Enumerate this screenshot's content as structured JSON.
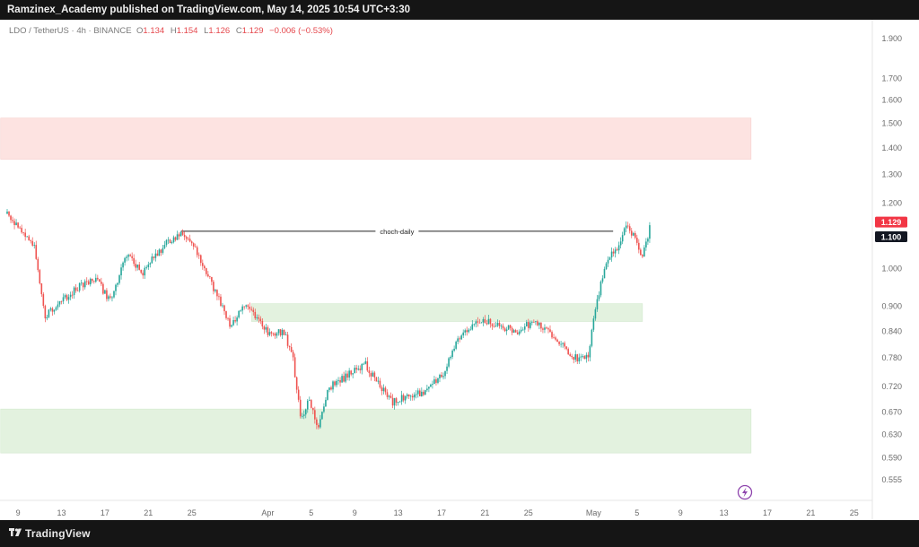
{
  "header": {
    "text": "Ramzinex_Academy published on TradingView.com, May 14, 2025 10:54 UTC+3:30"
  },
  "footer": {
    "brand": "TradingView"
  },
  "colors": {
    "up": "#26a69a",
    "down": "#ef5350",
    "supply_zone": "#fde3e1",
    "demand_zone": "#e3f2df",
    "current_price_tag": "#f23645",
    "level_tag": "#131722"
  },
  "chart_data": {
    "type": "candlestick",
    "symbol_legend": {
      "pair": "LDO / TetherUS · 4h · BINANCE",
      "o_label": "O",
      "open": "1.134",
      "h_label": "H",
      "high": "1.154",
      "l_label": "L",
      "low": "1.126",
      "c_label": "C",
      "close": "1.129",
      "change": "−0.006 (−0.53%)"
    },
    "y_axis": {
      "ticks": [
        "1.900",
        "1.700",
        "1.600",
        "1.500",
        "1.400",
        "1.300",
        "1.200",
        "1.100",
        "1.000",
        "0.900",
        "0.840",
        "0.780",
        "0.720",
        "0.670",
        "0.630",
        "0.590",
        "0.555"
      ],
      "scale": "log"
    },
    "x_axis": {
      "ticks": [
        "9",
        "13",
        "17",
        "21",
        "25",
        "Apr",
        "5",
        "9",
        "13",
        "17",
        "21",
        "25",
        "May",
        "5",
        "9",
        "13",
        "17",
        "21",
        "25"
      ]
    },
    "price_tags": [
      {
        "label": "1.129",
        "value": 1.129,
        "kind": "current"
      },
      {
        "label": "1.100",
        "value": 1.1,
        "kind": "level"
      }
    ],
    "zones": [
      {
        "kind": "supply",
        "low": 1.357,
        "high": 1.522,
        "from_day": -0.6,
        "to_day": 68.5
      },
      {
        "kind": "demand",
        "low": 0.863,
        "high": 0.907,
        "from_day": 22.5,
        "to_day": 58.5
      },
      {
        "kind": "demand",
        "low": 0.598,
        "high": 0.676,
        "from_day": -0.6,
        "to_day": 68.5
      }
    ],
    "annotations": [
      {
        "label": "choch-daily",
        "value": 1.11,
        "from_day": 16.0,
        "to_day": 55.8
      }
    ],
    "grid": false,
    "price_anchors": [
      [
        0,
        1.165
      ],
      [
        2.5,
        1.06
      ],
      [
        3.5,
        0.875
      ],
      [
        4.6,
        0.9
      ],
      [
        6.5,
        0.95
      ],
      [
        8.0,
        0.975
      ],
      [
        9.5,
        0.915
      ],
      [
        11.0,
        1.04
      ],
      [
        12.5,
        0.99
      ],
      [
        14.5,
        1.07
      ],
      [
        16.0,
        1.105
      ],
      [
        17.5,
        1.05
      ],
      [
        18.8,
        0.96
      ],
      [
        20.5,
        0.855
      ],
      [
        22.0,
        0.905
      ],
      [
        23.0,
        0.875
      ],
      [
        24.0,
        0.835
      ],
      [
        25.5,
        0.84
      ],
      [
        26.3,
        0.78
      ],
      [
        27.0,
        0.66
      ],
      [
        27.8,
        0.69
      ],
      [
        28.7,
        0.64
      ],
      [
        29.5,
        0.715
      ],
      [
        31.5,
        0.745
      ],
      [
        33.0,
        0.765
      ],
      [
        34.5,
        0.715
      ],
      [
        35.5,
        0.69
      ],
      [
        37.0,
        0.7
      ],
      [
        38.5,
        0.71
      ],
      [
        40.0,
        0.74
      ],
      [
        41.5,
        0.82
      ],
      [
        42.5,
        0.85
      ],
      [
        44.0,
        0.865
      ],
      [
        45.5,
        0.85
      ],
      [
        47.0,
        0.84
      ],
      [
        48.5,
        0.865
      ],
      [
        50.0,
        0.835
      ],
      [
        51.5,
        0.8
      ],
      [
        52.5,
        0.775
      ],
      [
        53.5,
        0.785
      ],
      [
        54.3,
        0.915
      ],
      [
        55.2,
        1.02
      ],
      [
        56.3,
        1.07
      ],
      [
        57.0,
        1.12
      ],
      [
        57.8,
        1.09
      ],
      [
        58.5,
        1.03
      ],
      [
        59.3,
        1.129
      ]
    ]
  }
}
